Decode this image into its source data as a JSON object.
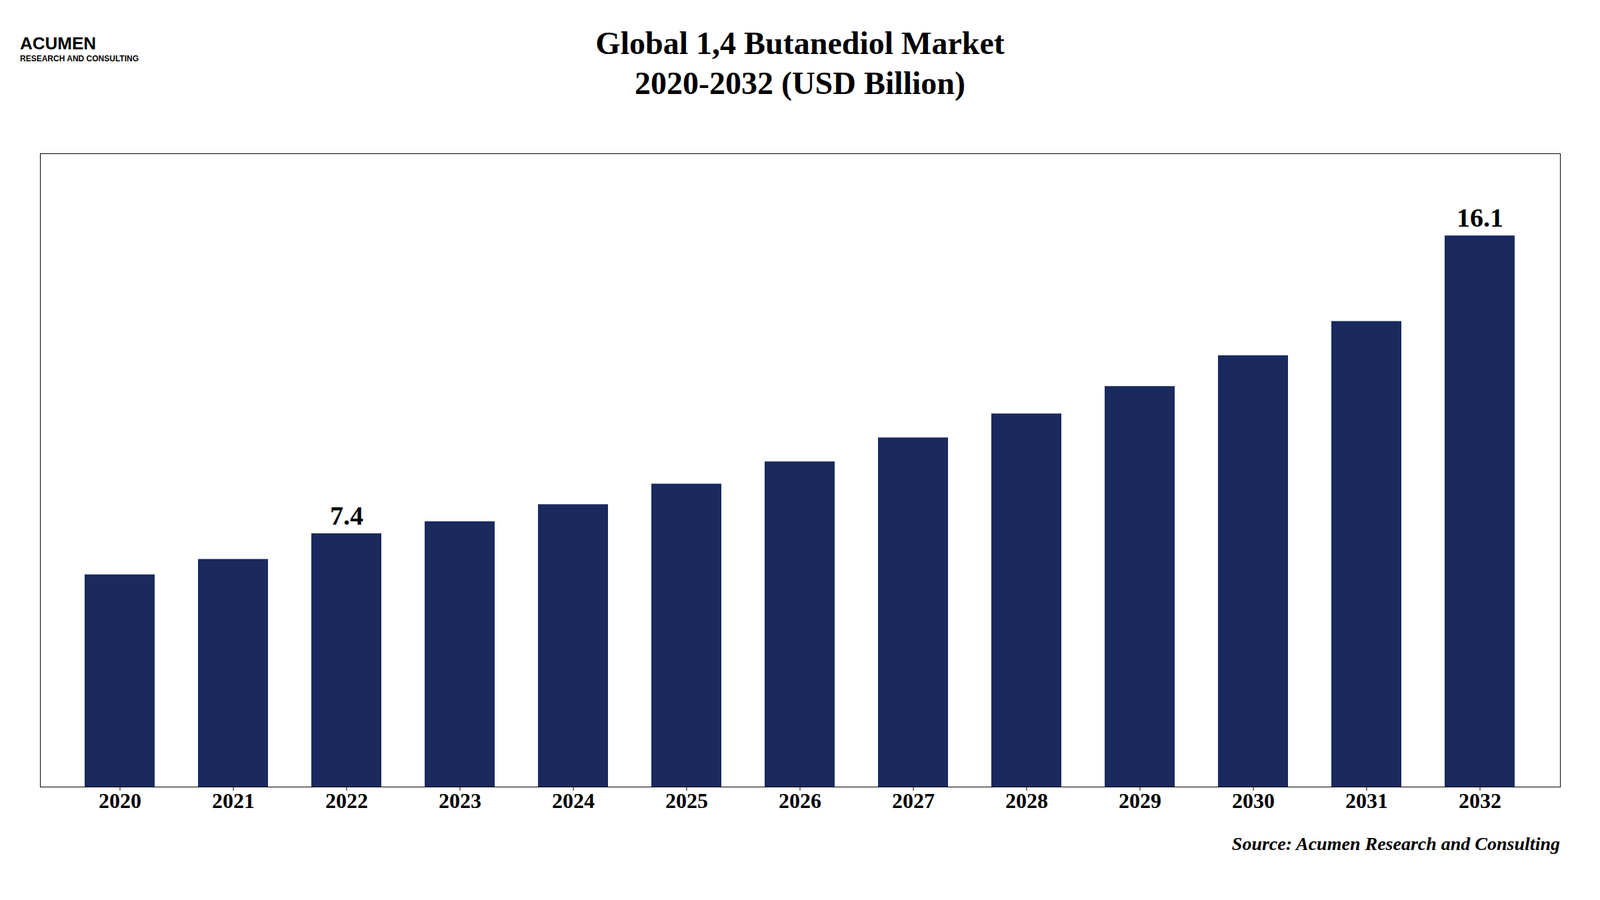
{
  "chart_data": {
    "type": "bar",
    "title": "Global 1,4 Butanediol Market",
    "subtitle": "2020-2032 (USD Billion)",
    "annotations": [
      "ACUMEN",
      "RESEARCH AND CONSULTING",
      "Source: Acumen Research and Consulting"
    ],
    "categories": [
      "2020",
      "2021",
      "2022",
      "2023",
      "2024",
      "2025",
      "2026",
      "2027",
      "2028",
      "2029",
      "2030",
      "2031",
      "2032"
    ],
    "values": [
      6.2,
      6.65,
      7.4,
      7.75,
      8.25,
      8.85,
      9.5,
      10.2,
      10.9,
      11.7,
      12.6,
      13.6,
      16.1
    ],
    "value_labels": [
      null,
      null,
      "7.4",
      null,
      null,
      null,
      null,
      null,
      null,
      null,
      null,
      null,
      "16.1"
    ],
    "data_labels": true,
    "color": "#1a2a5e",
    "ylim": [
      0,
      18.5
    ],
    "grid": false,
    "tick_labels": "x"
  }
}
